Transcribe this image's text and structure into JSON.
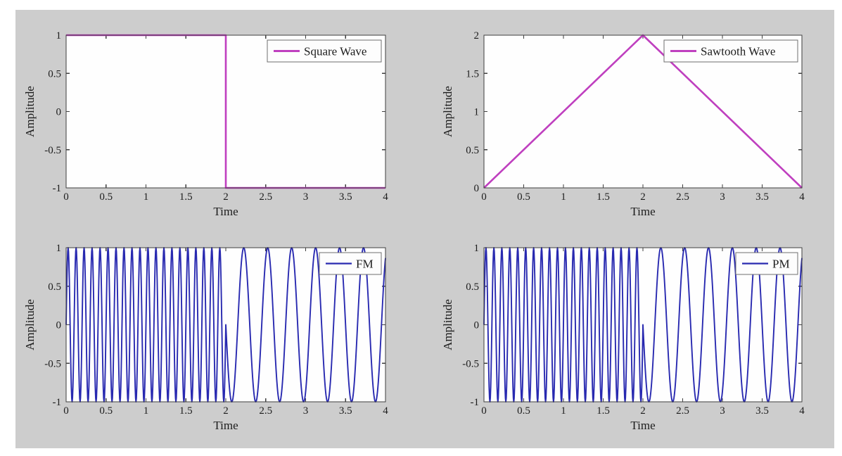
{
  "figure": {
    "background_color": "#cdcdcd",
    "plot_background_color": "#fefefe",
    "frame_color": "#3f3f3f",
    "legend_border_color": "#6f6f6f",
    "text_color": "#1c1c1c"
  },
  "chart_data": [
    {
      "id": "square",
      "type": "line",
      "legend": "Square Wave",
      "xlabel": "Time",
      "ylabel": "Amplitude",
      "color": "#bf3fbf",
      "line_width": 2.6,
      "xlim": [
        0,
        4
      ],
      "ylim": [
        -1,
        1
      ],
      "xticks": [
        "0",
        "0.5",
        "1",
        "1.5",
        "2",
        "2.5",
        "3",
        "3.5",
        "4"
      ],
      "yticks": [
        "-1",
        "-0.5",
        "0",
        "0.5",
        "1"
      ],
      "legend_position": "top-right",
      "grid": false,
      "wave": {
        "kind": "polyline",
        "points": [
          [
            0,
            1
          ],
          [
            2,
            1
          ],
          [
            2,
            -1
          ],
          [
            4,
            -1
          ]
        ]
      },
      "note": "Square wave message: amplitude +1 for 0<=t<2, -1 for 2<=t<=4"
    },
    {
      "id": "sawtooth",
      "type": "line",
      "legend": "Sawtooth Wave",
      "xlabel": "Time",
      "ylabel": "Amplitude",
      "color": "#bf3fbf",
      "line_width": 2.6,
      "xlim": [
        0,
        4
      ],
      "ylim": [
        0,
        2
      ],
      "xticks": [
        "0",
        "0.5",
        "1",
        "1.5",
        "2",
        "2.5",
        "3",
        "3.5",
        "4"
      ],
      "yticks": [
        "0",
        "0.5",
        "1",
        "1.5",
        "2"
      ],
      "legend_position": "top-right",
      "grid": false,
      "wave": {
        "kind": "polyline",
        "points": [
          [
            0,
            0
          ],
          [
            2,
            2
          ],
          [
            4,
            0
          ]
        ]
      },
      "note": "Triangular sawtooth message: rises 0 to 2 over [0,2], falls back to 0 over [2,4]"
    },
    {
      "id": "fm",
      "type": "line",
      "legend": "FM",
      "xlabel": "Time",
      "ylabel": "Amplitude",
      "color": "#2829b0",
      "line_width": 1.9,
      "xlim": [
        0,
        4
      ],
      "ylim": [
        -1,
        1
      ],
      "xticks": [
        "0",
        "0.5",
        "1",
        "1.5",
        "2",
        "2.5",
        "3",
        "3.5",
        "4"
      ],
      "yticks": [
        "-1",
        "-0.5",
        "0",
        "0.5",
        "1"
      ],
      "legend_position": "top-right",
      "grid": false,
      "wave": {
        "kind": "piecewise_sine",
        "sample_step": 0.005,
        "segments": [
          {
            "t0": 0,
            "t1": 2,
            "freq": 10,
            "amp": 1,
            "sign": 1
          },
          {
            "t0": 2,
            "t1": 4,
            "freq": 3.3333,
            "amp": 1,
            "sign": -1
          }
        ]
      },
      "note": "Frequency-modulated carrier: ~10 Hz while message is high (0..2), ~3.33 Hz while message is low (2..4), amplitude ±1"
    },
    {
      "id": "pm",
      "type": "line",
      "legend": "PM",
      "xlabel": "Time",
      "ylabel": "Amplitude",
      "color": "#2829b0",
      "line_width": 1.9,
      "xlim": [
        0,
        4
      ],
      "ylim": [
        -1,
        1
      ],
      "xticks": [
        "0",
        "0.5",
        "1",
        "1.5",
        "2",
        "2.5",
        "3",
        "3.5",
        "4"
      ],
      "yticks": [
        "-1",
        "-0.5",
        "0",
        "0.5",
        "1"
      ],
      "legend_position": "top-right",
      "grid": false,
      "wave": {
        "kind": "piecewise_sine",
        "sample_step": 0.005,
        "segments": [
          {
            "t0": 0,
            "t1": 2,
            "freq": 10,
            "amp": 1,
            "sign": 1
          },
          {
            "t0": 2,
            "t1": 4,
            "freq": 3.3333,
            "amp": 1,
            "sign": -1
          }
        ]
      },
      "note": "Phase-modulated carrier: ~10 Hz over [0,2], ~3.33 Hz over [2,4], amplitude ±1"
    }
  ]
}
